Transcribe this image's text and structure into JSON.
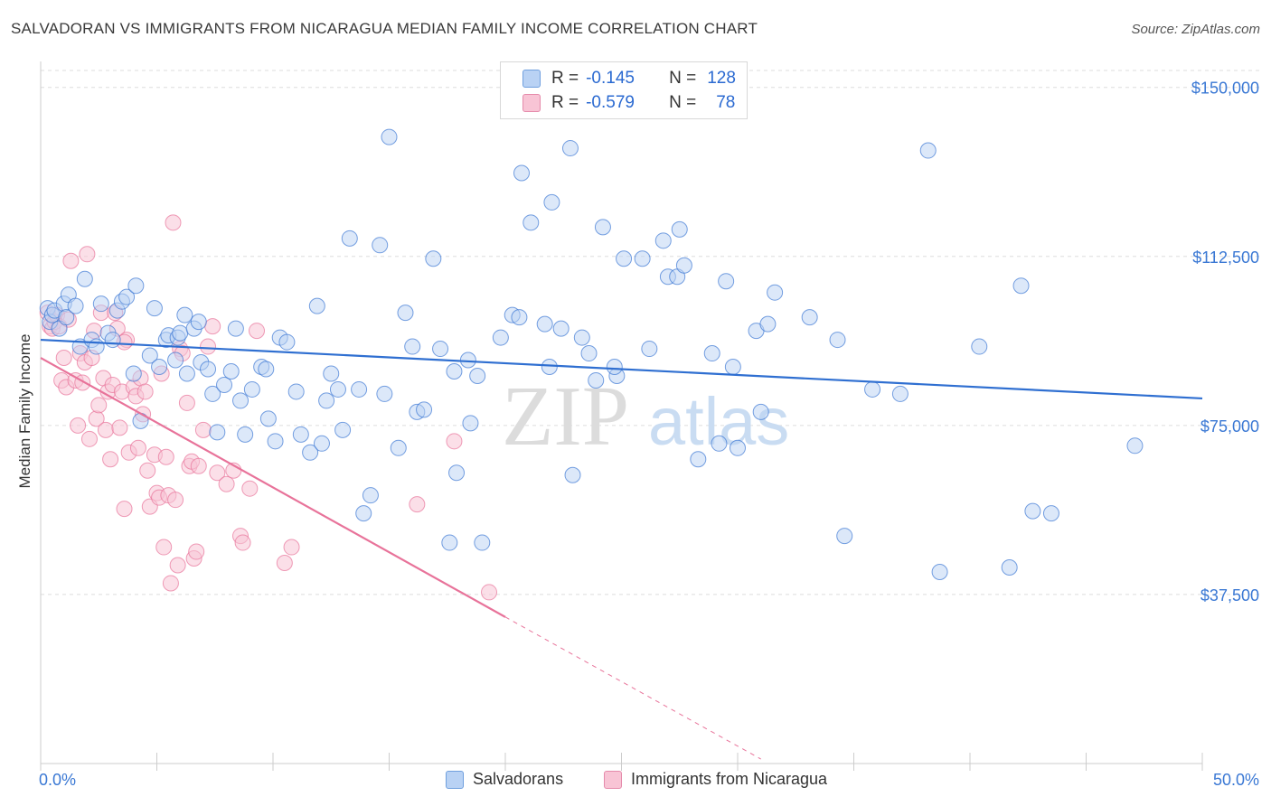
{
  "header": {
    "title": "SALVADORAN VS IMMIGRANTS FROM NICARAGUA MEDIAN FAMILY INCOME CORRELATION CHART",
    "source": "Source: ZipAtlas.com"
  },
  "legend": {
    "blue": {
      "r_label": "R =",
      "r_value": "-0.145",
      "n_label": "N =",
      "n_value": "128"
    },
    "pink": {
      "r_label": "R =",
      "r_value": "-0.579",
      "n_label": "N =",
      "n_value": "78"
    }
  },
  "bottom_legend": {
    "series1": "Salvadorans",
    "series2": "Immigrants from Nicaragua"
  },
  "colors": {
    "blue": "#2f6fd1",
    "blue_fill": "#b9d2f4",
    "pink": "#e8739a",
    "pink_fill": "#f8c4d5",
    "axis_text": "#3a78d4"
  },
  "chart_data": {
    "type": "scatter",
    "title": "SALVADORAN VS IMMIGRANTS FROM NICARAGUA MEDIAN FAMILY INCOME CORRELATION CHART",
    "xlabel": "",
    "ylabel": "Median Family Income",
    "xlim": [
      0,
      50
    ],
    "ylim": [
      0,
      153750
    ],
    "x_tick_labels": {
      "left": "0.0%",
      "right": "50.0%"
    },
    "y_ticks": [
      37500,
      75000,
      112500,
      150000
    ],
    "y_tick_labels": [
      "$37,500",
      "$75,000",
      "$112,500",
      "$150,000"
    ],
    "watermark": {
      "zip": "ZIP",
      "atlas": "atlas"
    },
    "series": [
      {
        "name": "Salvadorans",
        "trend": {
          "x0": 0,
          "y0": 94000,
          "x1": 50,
          "y1": 81000
        },
        "points": [
          [
            0.3,
            101000
          ],
          [
            0.4,
            98000
          ],
          [
            0.5,
            99500
          ],
          [
            0.6,
            100500
          ],
          [
            0.8,
            96500
          ],
          [
            1.0,
            102000
          ],
          [
            1.1,
            99000
          ],
          [
            1.2,
            104000
          ],
          [
            1.5,
            101500
          ],
          [
            1.7,
            92500
          ],
          [
            1.9,
            107500
          ],
          [
            2.2,
            94000
          ],
          [
            2.4,
            92500
          ],
          [
            2.6,
            102000
          ],
          [
            2.9,
            95500
          ],
          [
            3.1,
            94000
          ],
          [
            3.3,
            100500
          ],
          [
            3.5,
            102500
          ],
          [
            3.7,
            103500
          ],
          [
            4.0,
            86500
          ],
          [
            4.1,
            106000
          ],
          [
            4.3,
            76000
          ],
          [
            4.7,
            90500
          ],
          [
            4.9,
            101000
          ],
          [
            5.1,
            88000
          ],
          [
            5.4,
            94000
          ],
          [
            5.5,
            95000
          ],
          [
            5.9,
            94500
          ],
          [
            5.8,
            89500
          ],
          [
            6.0,
            95500
          ],
          [
            6.3,
            86500
          ],
          [
            6.6,
            96500
          ],
          [
            6.8,
            98000
          ],
          [
            6.9,
            89000
          ],
          [
            7.2,
            87500
          ],
          [
            7.4,
            82000
          ],
          [
            7.6,
            73500
          ],
          [
            7.9,
            84000
          ],
          [
            8.2,
            87000
          ],
          [
            8.4,
            96500
          ],
          [
            8.6,
            80500
          ],
          [
            8.8,
            73000
          ],
          [
            9.1,
            83000
          ],
          [
            9.5,
            88000
          ],
          [
            9.7,
            87500
          ],
          [
            9.8,
            76500
          ],
          [
            10.1,
            71500
          ],
          [
            10.3,
            94500
          ],
          [
            10.6,
            93500
          ],
          [
            11.0,
            82500
          ],
          [
            11.2,
            73000
          ],
          [
            11.6,
            69000
          ],
          [
            11.9,
            101500
          ],
          [
            12.1,
            71000
          ],
          [
            12.3,
            80500
          ],
          [
            12.5,
            86500
          ],
          [
            12.8,
            83000
          ],
          [
            13.0,
            74000
          ],
          [
            13.3,
            116500
          ],
          [
            13.7,
            83000
          ],
          [
            13.9,
            55500
          ],
          [
            14.2,
            59500
          ],
          [
            14.6,
            115000
          ],
          [
            14.8,
            82000
          ],
          [
            15.0,
            139000
          ],
          [
            15.4,
            70000
          ],
          [
            15.7,
            100000
          ],
          [
            16.0,
            92500
          ],
          [
            16.2,
            78000
          ],
          [
            16.5,
            78500
          ],
          [
            16.9,
            112000
          ],
          [
            17.2,
            92000
          ],
          [
            17.6,
            49000
          ],
          [
            17.8,
            87000
          ],
          [
            17.9,
            64500
          ],
          [
            18.4,
            89500
          ],
          [
            18.5,
            75500
          ],
          [
            18.8,
            86000
          ],
          [
            19.0,
            49000
          ],
          [
            19.8,
            94500
          ],
          [
            20.3,
            99500
          ],
          [
            20.6,
            99000
          ],
          [
            20.7,
            131000
          ],
          [
            21.1,
            120000
          ],
          [
            21.7,
            97500
          ],
          [
            21.9,
            88000
          ],
          [
            22.0,
            124500
          ],
          [
            22.4,
            96500
          ],
          [
            22.8,
            136500
          ],
          [
            22.9,
            64000
          ],
          [
            23.3,
            94500
          ],
          [
            23.6,
            91000
          ],
          [
            23.9,
            85000
          ],
          [
            24.2,
            119000
          ],
          [
            24.8,
            86000
          ],
          [
            24.7,
            88000
          ],
          [
            25.1,
            112000
          ],
          [
            25.9,
            112000
          ],
          [
            26.2,
            92000
          ],
          [
            26.8,
            116000
          ],
          [
            27.0,
            108000
          ],
          [
            27.4,
            108000
          ],
          [
            27.5,
            118500
          ],
          [
            27.7,
            110500
          ],
          [
            28.3,
            67500
          ],
          [
            28.9,
            91000
          ],
          [
            29.2,
            71000
          ],
          [
            29.5,
            107000
          ],
          [
            29.8,
            88000
          ],
          [
            30.0,
            70000
          ],
          [
            30.8,
            96000
          ],
          [
            31.0,
            78000
          ],
          [
            31.3,
            97500
          ],
          [
            31.6,
            104500
          ],
          [
            33.1,
            99000
          ],
          [
            34.3,
            94000
          ],
          [
            34.6,
            50500
          ],
          [
            35.8,
            83000
          ],
          [
            37.0,
            82000
          ],
          [
            38.2,
            136000
          ],
          [
            38.7,
            42500
          ],
          [
            40.4,
            92500
          ],
          [
            41.7,
            43500
          ],
          [
            42.2,
            106000
          ],
          [
            42.7,
            56000
          ],
          [
            43.5,
            55500
          ],
          [
            47.1,
            70500
          ],
          [
            6.2,
            99500
          ]
        ]
      },
      {
        "name": "Immigrants from Nicaragua",
        "trend": {
          "x0": 0,
          "y0": 90000,
          "x1": 20,
          "y1": 32500,
          "dashed_to": {
            "x": 31,
            "y": 1000
          }
        },
        "points": [
          [
            0.3,
            100000
          ],
          [
            0.4,
            97000
          ],
          [
            0.5,
            96500
          ],
          [
            0.6,
            98000
          ],
          [
            0.7,
            99500
          ],
          [
            0.8,
            97000
          ],
          [
            0.9,
            85000
          ],
          [
            1.0,
            90000
          ],
          [
            1.1,
            83500
          ],
          [
            1.2,
            98500
          ],
          [
            1.3,
            111500
          ],
          [
            1.5,
            85000
          ],
          [
            1.6,
            75000
          ],
          [
            1.7,
            91000
          ],
          [
            1.8,
            84500
          ],
          [
            1.9,
            89000
          ],
          [
            2.0,
            113000
          ],
          [
            2.1,
            72000
          ],
          [
            2.2,
            90000
          ],
          [
            2.3,
            96000
          ],
          [
            2.4,
            76500
          ],
          [
            2.5,
            79500
          ],
          [
            2.6,
            100000
          ],
          [
            2.7,
            85500
          ],
          [
            2.8,
            74000
          ],
          [
            2.9,
            82500
          ],
          [
            3.0,
            67500
          ],
          [
            3.1,
            84000
          ],
          [
            3.2,
            100000
          ],
          [
            3.3,
            96500
          ],
          [
            3.4,
            74500
          ],
          [
            3.5,
            82500
          ],
          [
            3.6,
            56500
          ],
          [
            3.7,
            94000
          ],
          [
            3.8,
            69000
          ],
          [
            4.0,
            83500
          ],
          [
            4.1,
            81500
          ],
          [
            4.2,
            70000
          ],
          [
            4.3,
            85500
          ],
          [
            4.4,
            77500
          ],
          [
            4.5,
            82500
          ],
          [
            4.6,
            65000
          ],
          [
            4.7,
            57000
          ],
          [
            4.9,
            68500
          ],
          [
            5.0,
            60000
          ],
          [
            5.1,
            59000
          ],
          [
            5.2,
            86500
          ],
          [
            5.3,
            48000
          ],
          [
            5.4,
            68000
          ],
          [
            5.5,
            59500
          ],
          [
            5.6,
            40000
          ],
          [
            5.7,
            120000
          ],
          [
            5.8,
            58500
          ],
          [
            5.9,
            44000
          ],
          [
            6.0,
            92000
          ],
          [
            6.1,
            91000
          ],
          [
            6.3,
            80000
          ],
          [
            6.4,
            66000
          ],
          [
            6.5,
            67000
          ],
          [
            6.6,
            45500
          ],
          [
            6.7,
            47000
          ],
          [
            6.8,
            66000
          ],
          [
            7.0,
            74000
          ],
          [
            7.2,
            92500
          ],
          [
            7.4,
            97000
          ],
          [
            7.6,
            64500
          ],
          [
            8.0,
            62000
          ],
          [
            8.3,
            65000
          ],
          [
            8.6,
            50500
          ],
          [
            8.7,
            49000
          ],
          [
            9.0,
            61000
          ],
          [
            9.3,
            96000
          ],
          [
            10.5,
            44500
          ],
          [
            10.8,
            48000
          ],
          [
            16.2,
            57500
          ],
          [
            17.8,
            71500
          ],
          [
            19.3,
            38000
          ],
          [
            3.6,
            93500
          ]
        ]
      }
    ]
  }
}
